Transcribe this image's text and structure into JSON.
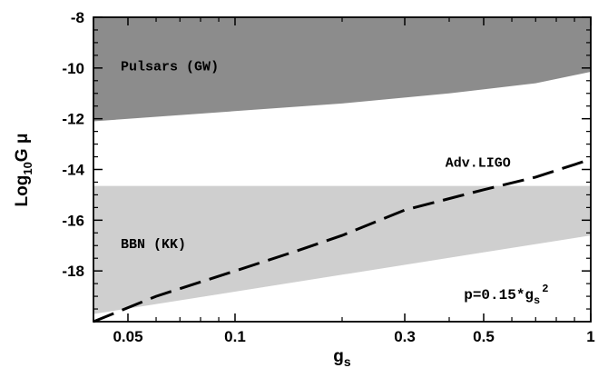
{
  "chart_data": {
    "type": "area",
    "title": "",
    "xlabel": "g",
    "xlabel_sub": "s",
    "ylabel_prefix": "Log",
    "ylabel_sub": "10",
    "ylabel_suffix": "G μ",
    "x_scale": "log",
    "xlim": [
      0.04,
      1
    ],
    "ylim": [
      -20,
      -8
    ],
    "x_ticks": [
      {
        "value": 0.05,
        "label": "0.05"
      },
      {
        "value": 0.1,
        "label": "0.1"
      },
      {
        "value": 0.3,
        "label": "0.3"
      },
      {
        "value": 0.5,
        "label": "0.5"
      },
      {
        "value": 1,
        "label": "1"
      }
    ],
    "y_ticks": [
      {
        "value": -8,
        "label": "-8"
      },
      {
        "value": -10,
        "label": "-10"
      },
      {
        "value": -12,
        "label": "-12"
      },
      {
        "value": -14,
        "label": "-14"
      },
      {
        "value": -16,
        "label": "-16"
      },
      {
        "value": -18,
        "label": "-18"
      }
    ],
    "regions": [
      {
        "name": "Pulsars (GW)",
        "color": "#8c8c8c",
        "lower_boundary": {
          "x": [
            0.04,
            0.1,
            0.2,
            0.4,
            0.7,
            1
          ],
          "y": [
            -12.1,
            -11.7,
            -11.4,
            -11.0,
            -10.6,
            -10.15
          ]
        },
        "upper_boundary": -8,
        "label_pos": {
          "x": 0.045,
          "y": -10.1
        }
      },
      {
        "name": "BBN (KK)",
        "color": "#cfcfcf",
        "upper_boundary": -14.65,
        "lower_boundary": {
          "x": [
            0.04,
            1
          ],
          "y": [
            -19.7,
            -16.6
          ]
        },
        "label_pos": {
          "x": 0.045,
          "y": -17.1
        }
      }
    ],
    "series": [
      {
        "name": "Adv.LIGO",
        "style": "dashed",
        "color": "#000000",
        "x": [
          0.04,
          0.06,
          0.1,
          0.15,
          0.2,
          0.3,
          0.5,
          0.7,
          1.0
        ],
        "y": [
          -20.0,
          -19.0,
          -18.0,
          -17.2,
          -16.6,
          -15.6,
          -14.8,
          -14.3,
          -13.6
        ]
      }
    ],
    "annotations": [
      {
        "text": "Adv.LIGO",
        "x": 0.39,
        "y": -13.9
      },
      {
        "text": "p=0.15*g",
        "sub": "s",
        "sup": "2",
        "x": 0.44,
        "y": -19.1
      }
    ],
    "grid": false,
    "legend": "none"
  }
}
